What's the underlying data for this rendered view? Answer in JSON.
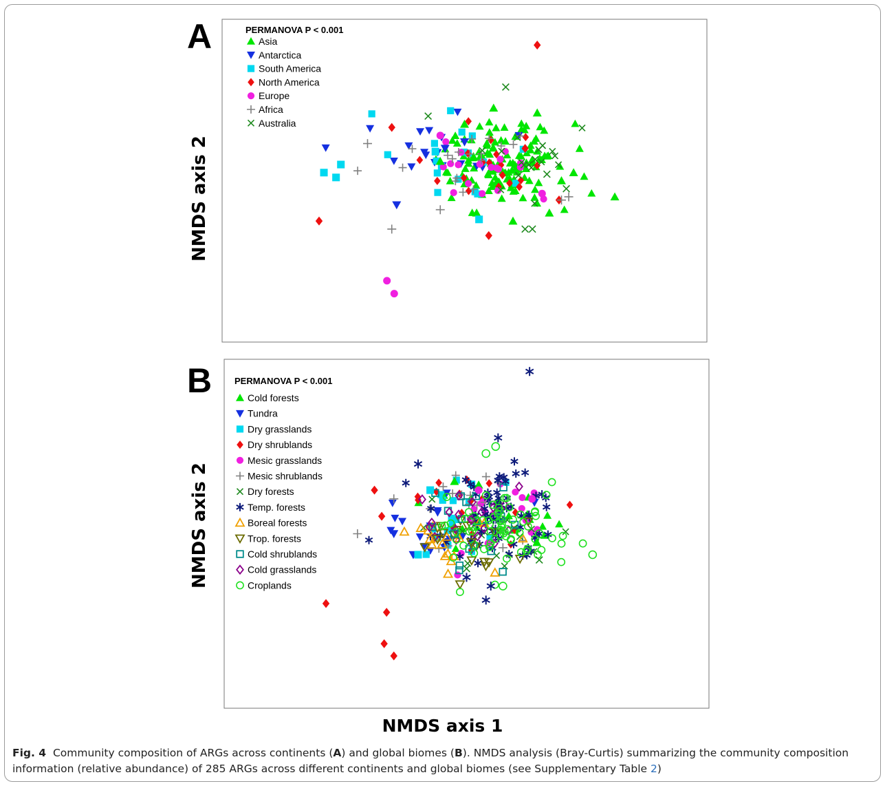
{
  "figure": {
    "panels": [
      {
        "letter": "A"
      },
      {
        "letter": "B"
      }
    ],
    "ylabel": "NMDS axis 2",
    "xlabel": "NMDS axis 1",
    "caption": {
      "label": "Fig. 4",
      "part1": "Community composition of ARGs across continents (",
      "a": "A",
      "part2": ") and global biomes (",
      "b": "B",
      "part3": "). NMDS analysis (Bray-Curtis) summarizing the community composition information (relative abundance) of 285 ARGs across different continents and global biomes (see Supplementary Table ",
      "ref": "2",
      "part4": ")"
    }
  },
  "chart_data": [
    {
      "type": "scatter",
      "panel": "A",
      "title": "PERMANOVA P < 0.001",
      "xlabel": "NMDS axis 1",
      "ylabel": "NMDS axis 2",
      "xlim": [
        -1.0,
        1.0
      ],
      "ylim": [
        -1.0,
        1.0
      ],
      "legend_position": "top-left",
      "grid": false,
      "series": [
        {
          "name": "Asia",
          "marker": "triangle-up",
          "color": "#00e600",
          "cluster": [
            0.15,
            0.1
          ],
          "points": [
            [
              0.62,
              -0.1
            ],
            [
              0.12,
              0.45
            ],
            [
              0.0,
              0.35
            ],
            [
              0.3,
              0.42
            ],
            [
              0.4,
              0.0
            ],
            [
              -0.1,
              0.12
            ],
            [
              0.45,
              0.05
            ],
            [
              0.35,
              -0.2
            ],
            [
              0.2,
              -0.25
            ],
            [
              0.05,
              -0.2
            ]
          ]
        },
        {
          "name": "Antarctica",
          "marker": "triangle-down",
          "color": "#1530e0",
          "cluster": [
            -0.12,
            0.18
          ],
          "points": [
            [
              -0.28,
              -0.15
            ],
            [
              -0.08,
              0.2
            ],
            [
              0.0,
              0.24
            ]
          ]
        },
        {
          "name": "South America",
          "marker": "square",
          "color": "#00d8f0",
          "cluster": [
            -0.05,
            0.15
          ],
          "points": [
            [
              -0.58,
              0.05
            ],
            [
              -0.51,
              0.1
            ],
            [
              -0.53,
              0.02
            ],
            [
              -0.12,
              0.18
            ],
            [
              0.06,
              -0.24
            ]
          ]
        },
        {
          "name": "North America",
          "marker": "diamond",
          "color": "#ee1010",
          "cluster": [
            0.12,
            0.1
          ],
          "points": [
            [
              0.3,
              0.84
            ],
            [
              -0.6,
              -0.25
            ],
            [
              0.1,
              -0.34
            ],
            [
              0.39,
              -0.12
            ],
            [
              -0.3,
              0.33
            ],
            [
              0.25,
              0.2
            ]
          ]
        },
        {
          "name": "Europe",
          "marker": "circle",
          "color": "#f020e0",
          "cluster": [
            0.1,
            0.08
          ],
          "points": [
            [
              -0.32,
              -0.62
            ],
            [
              -0.29,
              -0.7
            ],
            [
              -0.1,
              0.28
            ],
            [
              0.32,
              -0.08
            ]
          ]
        },
        {
          "name": "Africa",
          "marker": "plus",
          "color": "#808080",
          "cluster": [
            0.0,
            0.12
          ],
          "points": [
            [
              -0.3,
              -0.3
            ],
            [
              0.4,
              -0.12
            ],
            [
              0.43,
              -0.1
            ],
            [
              -0.4,
              0.23
            ],
            [
              -0.1,
              -0.18
            ]
          ]
        },
        {
          "name": "Australia",
          "marker": "x",
          "color": "#1e8a1e",
          "cluster": [
            0.2,
            0.1
          ],
          "points": [
            [
              0.17,
              0.58
            ],
            [
              -0.15,
              0.4
            ],
            [
              0.34,
              0.04
            ],
            [
              0.25,
              -0.3
            ],
            [
              0.28,
              -0.3
            ],
            [
              0.42,
              -0.05
            ]
          ]
        }
      ]
    },
    {
      "type": "scatter",
      "panel": "B",
      "title": "PERMANOVA P < 0.001",
      "xlabel": "NMDS axis 1",
      "ylabel": "NMDS axis 2",
      "xlim": [
        -1.0,
        1.0
      ],
      "ylim": [
        -1.0,
        1.0
      ],
      "legend_position": "top-left",
      "grid": false,
      "series": [
        {
          "name": "Cold forests",
          "marker": "triangle-up",
          "color": "#00e600",
          "cluster": [
            0.08,
            0.1
          ],
          "points": [
            [
              0.29,
              -0.05
            ],
            [
              -0.05,
              0.3
            ],
            [
              0.05,
              0.28
            ]
          ]
        },
        {
          "name": "Tundra",
          "marker": "triangle-down",
          "color": "#1530e0",
          "cluster": [
            -0.15,
            0.0
          ],
          "points": [
            [
              -0.3,
              0.0
            ],
            [
              -0.22,
              -0.12
            ],
            [
              0.28,
              0.18
            ]
          ]
        },
        {
          "name": "Dry grasslands",
          "marker": "square",
          "color": "#00d8f0",
          "cluster": [
            -0.05,
            0.1
          ],
          "points": [
            [
              -0.2,
              -0.12
            ],
            [
              -0.15,
              0.25
            ]
          ]
        },
        {
          "name": "Dry shrublands",
          "marker": "diamond",
          "color": "#ee1010",
          "cluster": [
            0.0,
            0.12
          ],
          "points": [
            [
              -0.58,
              -0.4
            ],
            [
              -0.33,
              -0.45
            ],
            [
              -0.34,
              -0.63
            ],
            [
              -0.3,
              -0.7
            ],
            [
              -0.38,
              0.25
            ],
            [
              -0.35,
              0.1
            ]
          ]
        },
        {
          "name": "Mesic grasslands",
          "marker": "circle",
          "color": "#f020e0",
          "cluster": [
            0.1,
            0.1
          ],
          "points": [
            [
              0.27,
              0.2
            ],
            [
              0.05,
              0.25
            ]
          ]
        },
        {
          "name": "Mesic shrublands",
          "marker": "plus",
          "color": "#808080",
          "cluster": [
            0.0,
            0.12
          ],
          "points": [
            [
              -0.45,
              0.0
            ],
            [
              -0.3,
              0.2
            ],
            [
              0.15,
              -0.08
            ]
          ]
        },
        {
          "name": "Dry forests",
          "marker": "x",
          "color": "#1e8a1e",
          "cluster": [
            0.1,
            0.0
          ],
          "points": [
            [
              0.3,
              -0.15
            ],
            [
              0.0,
              -0.2
            ]
          ]
        },
        {
          "name": "Temp. forests",
          "marker": "asterisk",
          "color": "#0d1a7a",
          "cluster": [
            0.12,
            0.12
          ],
          "points": [
            [
              0.26,
              0.93
            ],
            [
              0.13,
              0.55
            ],
            [
              0.1,
              -0.3
            ],
            [
              0.08,
              -0.38
            ],
            [
              0.0,
              -0.25
            ],
            [
              -0.2,
              0.4
            ],
            [
              0.3,
              0.0
            ]
          ]
        },
        {
          "name": "Boreal forests",
          "marker": "triangle-open",
          "color": "#f0a000",
          "cluster": [
            -0.1,
            -0.05
          ],
          "points": [
            [
              -0.15,
              -0.03
            ],
            [
              -0.1,
              -0.06
            ]
          ]
        },
        {
          "name": "Trop. forests",
          "marker": "triangle-down-open",
          "color": "#6b6b00",
          "cluster": [
            -0.05,
            -0.05
          ],
          "points": [
            [
              -0.12,
              -0.03
            ],
            [
              0.02,
              -0.05
            ]
          ]
        },
        {
          "name": "Cold shrublands",
          "marker": "square-open",
          "color": "#008b8b",
          "cluster": [
            0.0,
            0.05
          ],
          "points": [
            [
              -0.05,
              0.0
            ]
          ]
        },
        {
          "name": "Cold grasslands",
          "marker": "diamond-open",
          "color": "#8b008b",
          "cluster": [
            0.0,
            0.05
          ],
          "points": [
            [
              0.02,
              0.08
            ]
          ]
        },
        {
          "name": "Croplands",
          "marker": "circle-open",
          "color": "#20e020",
          "cluster": [
            0.12,
            0.05
          ],
          "points": [
            [
              0.52,
              -0.12
            ],
            [
              0.12,
              0.5
            ],
            [
              0.08,
              0.46
            ],
            [
              0.3,
              0.0
            ],
            [
              0.15,
              -0.3
            ]
          ]
        }
      ]
    }
  ]
}
